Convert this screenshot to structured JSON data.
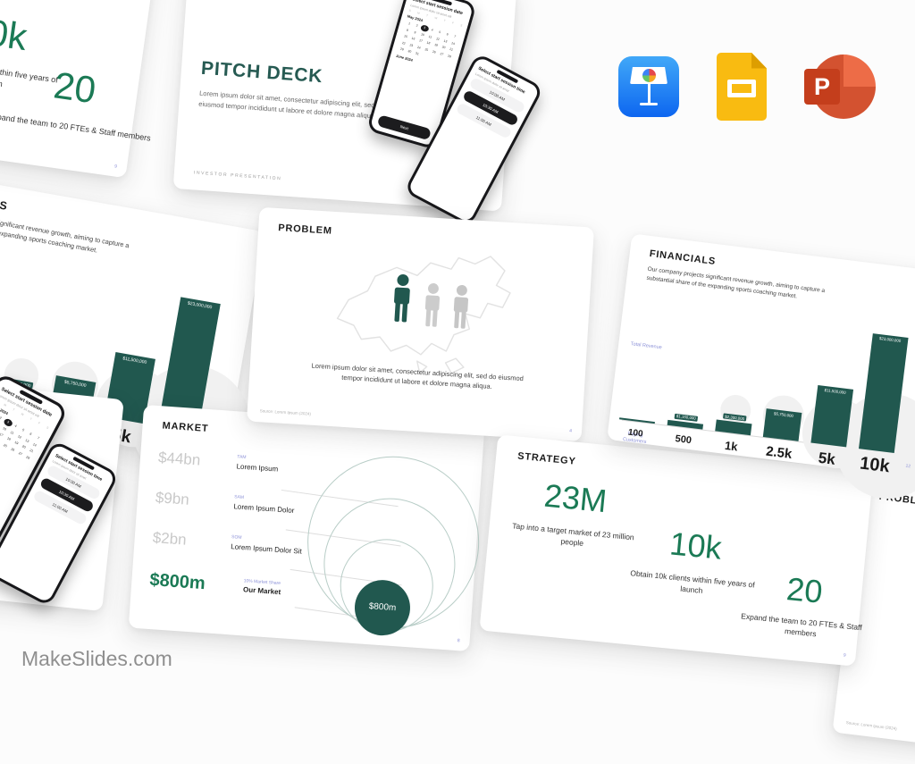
{
  "brand": {
    "name": "MakeSlides.com"
  },
  "colors": {
    "accent_teal": "#21584F",
    "accent_green": "#1B7A55",
    "accent_purple": "#8E93D8",
    "title_teal": "#265A52",
    "value_gray": "#C9C9C9"
  },
  "platform_icons": [
    {
      "name": "keynote"
    },
    {
      "name": "google-slides"
    },
    {
      "name": "powerpoint"
    }
  ],
  "cover": {
    "title": "PITCH DECK",
    "body": "Lorem ipsum dolor sit amet, consectetur adipiscing elit, sed do eiusmod tempor incididunt ut labore et dolore magna aliqua",
    "kicker": "INVESTOR PRESENTATION"
  },
  "phone_date": {
    "title": "Select start session date",
    "subtitle": "Lorem ipsum dolor sit amet elit",
    "weekdays": [
      "S",
      "M",
      "T",
      "W",
      "T",
      "F",
      "S"
    ],
    "month1": "May 2024",
    "month2": "June 2024",
    "days": 31,
    "selected_day": 3,
    "cta": "Next"
  },
  "phone_time": {
    "title": "Select start session time",
    "subtitle": "Lorem ipsum dolor sit amet",
    "slots": [
      "10:00 AM",
      "10:30 AM",
      "11:00 AM"
    ],
    "selected_index": 1
  },
  "problem": {
    "title": "PROBLEM",
    "body": "Lorem ipsum dolor sit amet, consectetur adipiscing elit, sed do eiusmod tempor incididunt ut labore et dolore magna aliqua.",
    "source": "Source: Lorem Ipsum (2024)",
    "page": "4"
  },
  "financials": {
    "title": "FINANCIALS",
    "body": "Our company projects significant revenue growth, aiming to capture a substantial share of the expanding sports coaching market.",
    "y_axis_label": "Total Revenue",
    "x_axis_label": "Paying Customers",
    "page": "12",
    "chart": {
      "type": "bar",
      "categories": [
        "100",
        "500",
        "1k",
        "2.5k",
        "5k",
        "10k"
      ],
      "values": [
        230000,
        1150000,
        2300000,
        5750000,
        11500000,
        23000000
      ],
      "value_labels": [
        "",
        "$1,150,000",
        "$2,300,000",
        "$5,750,000",
        "$11,500,000",
        "$23,000,000"
      ],
      "xlabel": "Paying Customers",
      "ylabel": "Total Revenue"
    }
  },
  "market": {
    "title": "MARKET",
    "rows": [
      {
        "value": "$44bn",
        "tag": "TAM",
        "label": "Lorem Ipsum"
      },
      {
        "value": "$9bn",
        "tag": "SAM",
        "label": "Lorem Ipsum Dolor"
      },
      {
        "value": "$2bn",
        "tag": "SOM",
        "label": "Lorem Ipsum Dolor Sit"
      },
      {
        "value": "$800m",
        "tag": "10% Market Share",
        "label": "Our Market"
      }
    ],
    "bubble": "$800m",
    "page": "8"
  },
  "strategy": {
    "title": "STRATEGY",
    "items": [
      {
        "value": "23M",
        "desc": "Tap into a target market of 23 million people"
      },
      {
        "value": "10k",
        "desc": "Obtain 10k clients within five years of launch"
      },
      {
        "value": "20",
        "desc": "Expand the team to 20 FTEs & Staff members"
      }
    ],
    "page": "9"
  }
}
